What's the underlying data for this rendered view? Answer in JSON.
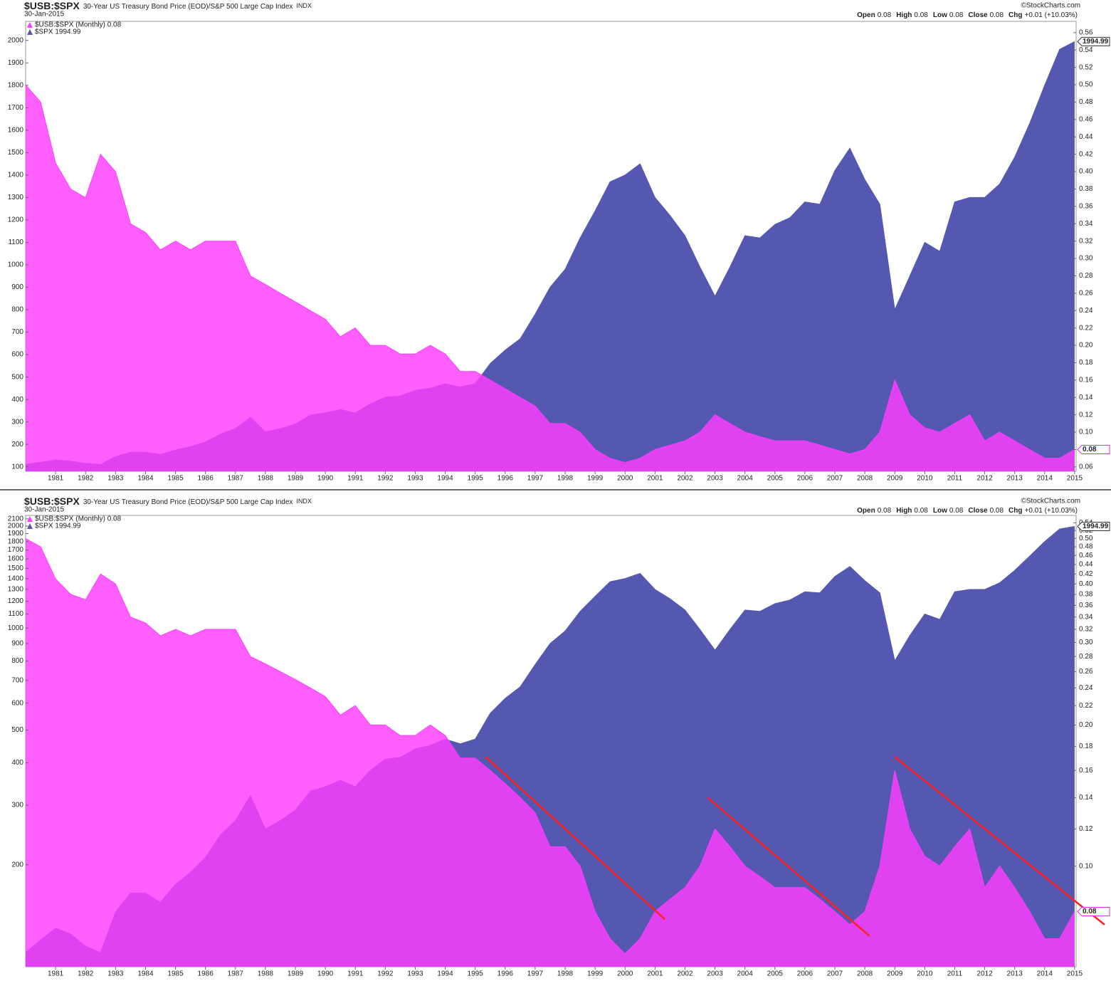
{
  "chart_data": [
    {
      "type": "area",
      "log_scale": false,
      "header": {
        "symbol": "$USB:$SPX",
        "description": "30-Year US Treasury Bond Price (EOD)/S&P 500 Large Cap Index",
        "exchange": "INDX",
        "date": "30-Jan-2015",
        "watermark": "©StockCharts.com",
        "quote": [
          {
            "label": "Open",
            "value": "0.08"
          },
          {
            "label": "High",
            "value": "0.08"
          },
          {
            "label": "Low",
            "value": "0.08"
          },
          {
            "label": "Close",
            "value": "0.08"
          },
          {
            "label": "Chg",
            "value": "+0.01 (+10.03%)"
          }
        ]
      },
      "x": [
        1980,
        1980.5,
        1981,
        1981.5,
        1982,
        1982.5,
        1983,
        1983.5,
        1984,
        1984.5,
        1985,
        1985.5,
        1986,
        1986.5,
        1987,
        1987.5,
        1988,
        1988.5,
        1989,
        1989.5,
        1990,
        1990.5,
        1991,
        1991.5,
        1992,
        1992.5,
        1993,
        1993.5,
        1994,
        1994.5,
        1995,
        1995.5,
        1996,
        1996.5,
        1997,
        1997.5,
        1998,
        1998.5,
        1999,
        1999.5,
        2000,
        2000.5,
        2001,
        2001.5,
        2002,
        2002.5,
        2003,
        2003.5,
        2004,
        2004.5,
        2005,
        2005.5,
        2006,
        2006.5,
        2007,
        2007.5,
        2008,
        2008.5,
        2009,
        2009.5,
        2010,
        2010.5,
        2011,
        2011.5,
        2012,
        2012.5,
        2013,
        2013.5,
        2014,
        2014.5,
        2015
      ],
      "xlim": [
        1980,
        2015.05
      ],
      "xticks": [
        1981,
        1982,
        1983,
        1984,
        1985,
        1986,
        1987,
        1988,
        1989,
        1990,
        1991,
        1992,
        1993,
        1994,
        1995,
        1996,
        1997,
        1998,
        1999,
        2000,
        2001,
        2002,
        2003,
        2004,
        2005,
        2006,
        2007,
        2008,
        2009,
        2010,
        2011,
        2012,
        2013,
        2014,
        2015
      ],
      "ylim": [
        80,
        2085
      ],
      "yticks": [
        100,
        200,
        300,
        400,
        500,
        600,
        700,
        800,
        900,
        1000,
        1100,
        1200,
        1300,
        1400,
        1500,
        1600,
        1700,
        1800,
        1900,
        2000
      ],
      "y2lim": [
        0.055,
        0.573
      ],
      "y2ticks": [
        0.06,
        0.08,
        {
          "value": 0.1,
          "label": "0.10"
        },
        0.12,
        0.14,
        0.16,
        0.18,
        {
          "value": 0.2,
          "label": "0.20"
        },
        0.22,
        0.24,
        0.26,
        0.28,
        {
          "value": 0.3,
          "label": "0.30"
        },
        0.32,
        0.34,
        0.36,
        0.38,
        {
          "value": 0.4,
          "label": "0.40"
        },
        0.42,
        0.44,
        0.46,
        0.48,
        {
          "value": 0.5,
          "label": "0.50"
        },
        0.52,
        0.54,
        0.56
      ],
      "series": [
        {
          "name": "$SPX 1994.99",
          "color": "#5558b0",
          "axis": "y",
          "values": [
            110,
            120,
            130,
            125,
            115,
            110,
            145,
            165,
            165,
            155,
            175,
            190,
            210,
            245,
            270,
            320,
            255,
            270,
            290,
            330,
            340,
            355,
            340,
            380,
            410,
            415,
            440,
            450,
            470,
            455,
            470,
            560,
            620,
            670,
            780,
            900,
            980,
            1120,
            1240,
            1370,
            1400,
            1450,
            1300,
            1220,
            1130,
            990,
            860,
            990,
            1130,
            1120,
            1180,
            1210,
            1280,
            1270,
            1420,
            1520,
            1380,
            1270,
            800,
            950,
            1100,
            1060,
            1280,
            1300,
            1300,
            1360,
            1480,
            1630,
            1800,
            1960,
            1994.99
          ]
        },
        {
          "name": "$USB:$SPX (Monthly) 0.08",
          "color": "#ff3cff",
          "axis": "y2",
          "values": [
            0.5,
            0.48,
            0.41,
            0.38,
            0.37,
            0.42,
            0.4,
            0.34,
            0.33,
            0.31,
            0.32,
            0.31,
            0.32,
            0.32,
            0.32,
            0.28,
            0.27,
            0.26,
            0.25,
            0.24,
            0.23,
            0.21,
            0.22,
            0.2,
            0.2,
            0.19,
            0.19,
            0.2,
            0.19,
            0.17,
            0.17,
            0.16,
            0.15,
            0.14,
            0.13,
            0.11,
            0.11,
            0.1,
            0.08,
            0.07,
            0.065,
            0.07,
            0.08,
            0.085,
            0.09,
            0.1,
            0.12,
            0.11,
            0.1,
            0.095,
            0.09,
            0.09,
            0.09,
            0.085,
            0.08,
            0.075,
            0.08,
            0.1,
            0.16,
            0.12,
            0.105,
            0.1,
            0.11,
            0.12,
            0.09,
            0.1,
            0.09,
            0.08,
            0.07,
            0.07,
            0.08
          ]
        }
      ]
    },
    {
      "type": "area",
      "log_scale": true,
      "header": {
        "symbol": "$USB:$SPX",
        "description": "30-Year US Treasury Bond Price (EOD)/S&P 500 Large Cap Index",
        "exchange": "INDX",
        "date": "30-Jan-2015",
        "watermark": "©StockCharts.com",
        "quote": [
          {
            "label": "Open",
            "value": "0.08"
          },
          {
            "label": "High",
            "value": "0.08"
          },
          {
            "label": "Low",
            "value": "0.08"
          },
          {
            "label": "Close",
            "value": "0.08"
          },
          {
            "label": "Chg",
            "value": "+0.01 (+10.03%)"
          }
        ]
      },
      "x": [
        1980,
        1980.5,
        1981,
        1981.5,
        1982,
        1982.5,
        1983,
        1983.5,
        1984,
        1984.5,
        1985,
        1985.5,
        1986,
        1986.5,
        1987,
        1987.5,
        1988,
        1988.5,
        1989,
        1989.5,
        1990,
        1990.5,
        1991,
        1991.5,
        1992,
        1992.5,
        1993,
        1993.5,
        1994,
        1994.5,
        1995,
        1995.5,
        1996,
        1996.5,
        1997,
        1997.5,
        1998,
        1998.5,
        1999,
        1999.5,
        2000,
        2000.5,
        2001,
        2001.5,
        2002,
        2002.5,
        2003,
        2003.5,
        2004,
        2004.5,
        2005,
        2005.5,
        2006,
        2006.5,
        2007,
        2007.5,
        2008,
        2008.5,
        2009,
        2009.5,
        2010,
        2010.5,
        2011,
        2011.5,
        2012,
        2012.5,
        2013,
        2013.5,
        2014,
        2014.5,
        2015
      ],
      "xlim": [
        1980,
        2015.05
      ],
      "xticks": [
        1981,
        1982,
        1983,
        1984,
        1985,
        1986,
        1987,
        1988,
        1989,
        1990,
        1991,
        1992,
        1993,
        1994,
        1995,
        1996,
        1997,
        1998,
        1999,
        2000,
        2001,
        2002,
        2003,
        2004,
        2005,
        2006,
        2007,
        2008,
        2009,
        2010,
        2011,
        2012,
        2013,
        2014,
        2015
      ],
      "ylim": [
        100,
        2150
      ],
      "yticks": [
        200,
        300,
        400,
        500,
        600,
        700,
        800,
        900,
        1000,
        1100,
        1200,
        1300,
        1400,
        1500,
        1600,
        1700,
        1800,
        1900,
        2000,
        2100
      ],
      "y2lim": [
        0.061,
        0.56
      ],
      "y2ticks": [
        {
          "value": 0.1,
          "label": "0.10"
        },
        0.12,
        0.14,
        0.16,
        0.18,
        {
          "value": 0.2,
          "label": "0.20"
        },
        0.22,
        0.24,
        0.26,
        0.28,
        {
          "value": 0.3,
          "label": "0.30"
        },
        0.32,
        0.34,
        0.36,
        0.38,
        {
          "value": 0.4,
          "label": "0.40"
        },
        0.42,
        0.44,
        0.46,
        0.48,
        {
          "value": 0.5,
          "label": "0.50"
        },
        0.52,
        0.54
      ],
      "series": [
        {
          "name": "$SPX 1994.99",
          "color": "#5558b0",
          "axis": "y",
          "values": [
            110,
            120,
            130,
            125,
            115,
            110,
            145,
            165,
            165,
            155,
            175,
            190,
            210,
            245,
            270,
            320,
            255,
            270,
            290,
            330,
            340,
            355,
            340,
            380,
            410,
            415,
            440,
            450,
            470,
            455,
            470,
            560,
            620,
            670,
            780,
            900,
            980,
            1120,
            1240,
            1370,
            1400,
            1450,
            1300,
            1220,
            1130,
            990,
            860,
            990,
            1130,
            1120,
            1180,
            1210,
            1280,
            1270,
            1420,
            1520,
            1380,
            1270,
            800,
            950,
            1100,
            1060,
            1280,
            1300,
            1300,
            1360,
            1480,
            1630,
            1800,
            1960,
            1994.99
          ]
        },
        {
          "name": "$USB:$SPX (Monthly) 0.08",
          "color": "#ff3cff",
          "axis": "y2",
          "values": [
            0.5,
            0.48,
            0.41,
            0.38,
            0.37,
            0.42,
            0.4,
            0.34,
            0.33,
            0.31,
            0.32,
            0.31,
            0.32,
            0.32,
            0.32,
            0.28,
            0.27,
            0.26,
            0.25,
            0.24,
            0.23,
            0.21,
            0.22,
            0.2,
            0.2,
            0.19,
            0.19,
            0.2,
            0.19,
            0.17,
            0.17,
            0.16,
            0.15,
            0.14,
            0.13,
            0.11,
            0.11,
            0.1,
            0.08,
            0.07,
            0.065,
            0.07,
            0.08,
            0.085,
            0.09,
            0.1,
            0.12,
            0.11,
            0.1,
            0.095,
            0.09,
            0.09,
            0.09,
            0.085,
            0.08,
            0.075,
            0.08,
            0.1,
            0.16,
            0.12,
            0.105,
            0.1,
            0.11,
            0.12,
            0.09,
            0.1,
            0.09,
            0.08,
            0.07,
            0.07,
            0.08
          ]
        }
      ],
      "trend_color": "#ff2020",
      "trend_lines": [
        {
          "x": [
            1995.35,
            2001.33
          ],
          "y": [
            0.171,
            0.077
          ]
        },
        {
          "x": [
            2002.76,
            2008.15
          ],
          "y": [
            0.14,
            0.071
          ]
        },
        {
          "x": [
            2009.0,
            2016.0
          ],
          "y": [
            0.171,
            0.075
          ]
        }
      ]
    }
  ]
}
